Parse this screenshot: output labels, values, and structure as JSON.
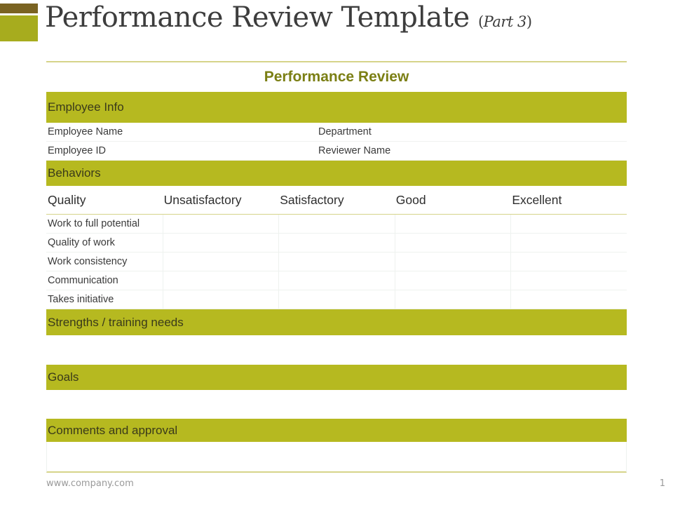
{
  "slide": {
    "title": "Performance Review Template",
    "subtitle_open": "(",
    "subtitle_text": "Part 3",
    "subtitle_close": ")"
  },
  "form": {
    "heading": "Performance Review",
    "employee_info": {
      "label": "Employee Info",
      "rows": [
        [
          "Employee Name",
          "Department"
        ],
        [
          "Employee ID",
          "Reviewer Name"
        ]
      ]
    },
    "behaviors": {
      "label": "Behaviors",
      "headers": [
        "Quality",
        "Unsatisfactory",
        "Satisfactory",
        "Good",
        "Excellent"
      ],
      "items": [
        "Work to full potential",
        "Quality of work",
        "Work consistency",
        "Communication",
        "Takes initiative"
      ]
    },
    "strengths_label": "Strengths / training needs",
    "goals_label": "Goals",
    "comments_label": "Comments and approval"
  },
  "footer": {
    "url": "www.company.com",
    "page": "1"
  },
  "colors": {
    "band": "#b6b920",
    "heading": "#7b7f14",
    "accent_dark": "#7a6322",
    "accent_light": "#a7ac1e"
  }
}
